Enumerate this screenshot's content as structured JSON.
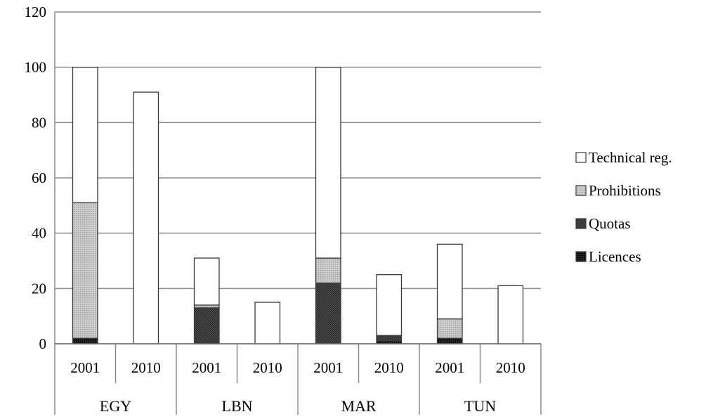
{
  "chart_data": {
    "type": "bar",
    "stacked": true,
    "title": "",
    "xlabel": "",
    "ylabel": "",
    "ylim": [
      0,
      120
    ],
    "yticks": [
      0,
      20,
      40,
      60,
      80,
      100,
      120
    ],
    "grid": true,
    "legend_position": "right",
    "groups": [
      {
        "label": "EGY",
        "categories": [
          "2001",
          "2010"
        ]
      },
      {
        "label": "LBN",
        "categories": [
          "2001",
          "2010"
        ]
      },
      {
        "label": "MAR",
        "categories": [
          "2001",
          "2010"
        ]
      },
      {
        "label": "TUN",
        "categories": [
          "2001",
          "2010"
        ]
      }
    ],
    "series": [
      {
        "name": "Licences",
        "pattern": "dark-grid",
        "color": "#222222",
        "values": [
          2,
          0,
          0,
          0,
          0,
          1,
          2,
          0
        ]
      },
      {
        "name": "Quotas",
        "pattern": "dark-check",
        "color": "#444444",
        "values": [
          0,
          0,
          13,
          0,
          22,
          2,
          0,
          0
        ]
      },
      {
        "name": "Prohibitions",
        "pattern": "light-grid",
        "color": "#c0c0c0",
        "values": [
          49,
          0,
          1,
          0,
          9,
          0,
          7,
          0
        ]
      },
      {
        "name": "Technical reg.",
        "pattern": "none",
        "color": "#ffffff",
        "values": [
          49,
          91,
          17,
          15,
          69,
          22,
          27,
          21
        ]
      }
    ]
  }
}
